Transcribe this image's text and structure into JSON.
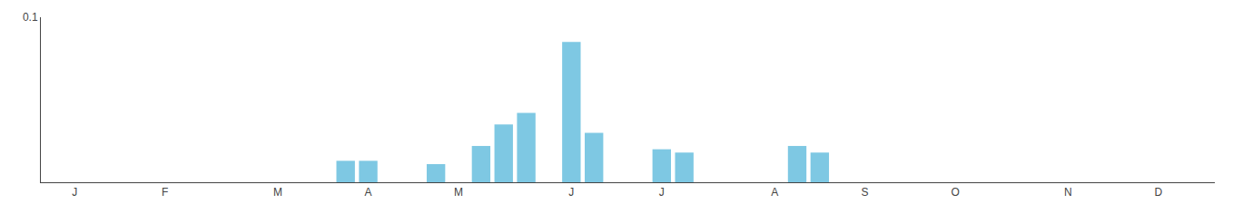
{
  "chart_data": {
    "type": "bar",
    "categories": [
      null,
      "J",
      null,
      null,
      null,
      "F",
      null,
      null,
      null,
      null,
      "M",
      null,
      null,
      null,
      "A",
      null,
      null,
      null,
      "M",
      null,
      null,
      null,
      null,
      "J",
      null,
      null,
      null,
      "J",
      null,
      null,
      null,
      null,
      "A",
      null,
      null,
      null,
      "S",
      null,
      null,
      null,
      "O",
      null,
      null,
      null,
      null,
      "N",
      null,
      null,
      null,
      "D",
      null,
      null
    ],
    "values": [
      0,
      0,
      0,
      0,
      0,
      0,
      0,
      0,
      0,
      0,
      0,
      0,
      0,
      0.013,
      0.013,
      0,
      0,
      0.011,
      0,
      0.022,
      0.035,
      0.042,
      0,
      0.085,
      0.03,
      0,
      0,
      0.02,
      0.018,
      0,
      0,
      0,
      0,
      0.022,
      0.018,
      0,
      0,
      0,
      0,
      0,
      0,
      0,
      0,
      0,
      0,
      0,
      0,
      0,
      0,
      0,
      0,
      0
    ],
    "color": "#7EC8E3",
    "ylim": [
      0,
      0.1
    ],
    "yticks": [
      0.1
    ],
    "grid": false
  }
}
